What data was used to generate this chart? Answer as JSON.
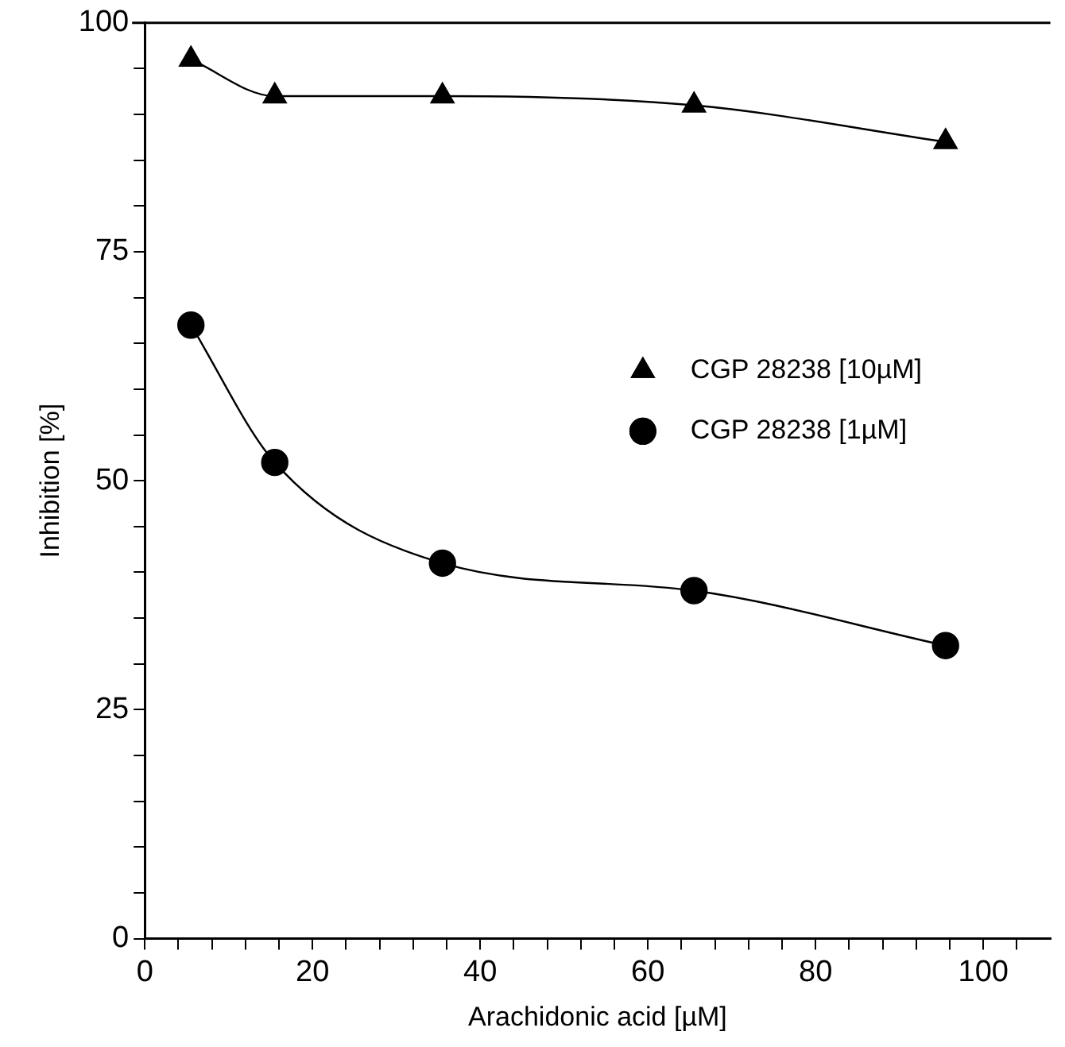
{
  "chart_data": {
    "type": "line",
    "xlabel": "Arachidonic acid [µM]",
    "ylabel": "Inhibition [%]",
    "x": [
      5.5,
      15.5,
      35.5,
      65.5,
      95.5
    ],
    "series": [
      {
        "name": "CGP 28238 [10µM]",
        "color": "#000000",
        "marker": "triangle",
        "values": [
          96,
          92,
          92,
          91,
          87
        ]
      },
      {
        "name": "CGP 28238 [1µM]",
        "color": "#000000",
        "marker": "circle",
        "values": [
          67,
          52,
          41,
          38,
          32
        ]
      }
    ],
    "xlim": [
      0,
      108
    ],
    "xticks": [
      0,
      {
        "value": 4,
        "label": null
      },
      {
        "value": 8,
        "label": null
      },
      {
        "value": 12,
        "label": null
      },
      {
        "value": 16,
        "label": null
      },
      20,
      {
        "value": 24,
        "label": null
      },
      {
        "value": 28,
        "label": null
      },
      {
        "value": 32,
        "label": null
      },
      {
        "value": 36,
        "label": null
      },
      40,
      {
        "value": 44,
        "label": null
      },
      {
        "value": 48,
        "label": null
      },
      {
        "value": 52,
        "label": null
      },
      {
        "value": 56,
        "label": null
      },
      60,
      {
        "value": 64,
        "label": null
      },
      {
        "value": 68,
        "label": null
      },
      {
        "value": 72,
        "label": null
      },
      {
        "value": 76,
        "label": null
      },
      80,
      {
        "value": 84,
        "label": null
      },
      {
        "value": 88,
        "label": null
      },
      {
        "value": 92,
        "label": null
      },
      {
        "value": 96,
        "label": null
      },
      100,
      {
        "value": 104,
        "label": null
      }
    ],
    "ylim": [
      0,
      100
    ],
    "yticks": [
      0,
      {
        "value": 5,
        "label": null
      },
      {
        "value": 10,
        "label": null
      },
      {
        "value": 15,
        "label": null
      },
      {
        "value": 20,
        "label": null
      },
      25,
      {
        "value": 30,
        "label": null
      },
      {
        "value": 35,
        "label": null
      },
      {
        "value": 40,
        "label": null
      },
      {
        "value": 45,
        "label": null
      },
      50,
      {
        "value": 55,
        "label": null
      },
      {
        "value": 60,
        "label": null
      },
      {
        "value": 65,
        "label": null
      },
      {
        "value": 70,
        "label": null
      },
      75,
      {
        "value": 80,
        "label": null
      },
      {
        "value": 85,
        "label": null
      },
      {
        "value": 90,
        "label": null
      },
      {
        "value": 95,
        "label": null
      },
      100
    ],
    "legend": "right",
    "line_style": "solid",
    "grid": false
  }
}
